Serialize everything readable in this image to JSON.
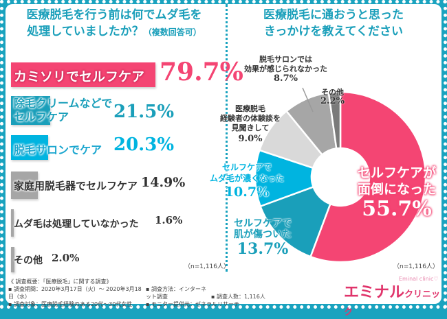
{
  "left": {
    "title_line1": "医療脱毛を行う前は何でムダ毛を",
    "title_line2": "処理していましたか？",
    "title_note": "（複数回答可）",
    "n_note": "（n=1,116人）"
  },
  "right": {
    "title_line1": "医療脱毛に通おうと思った",
    "title_line2": "きっかけを教えてください",
    "n_note": "（n=1,116人）"
  },
  "chart_data": [
    {
      "type": "bar",
      "orientation": "horizontal",
      "categories": [
        "カミソリでセルフケア",
        "除毛クリームなどでセルフケア",
        "脱毛サロンでケア",
        "家庭用脱毛器でセルフケア",
        "ムダ毛は処理していなかった",
        "その他"
      ],
      "values": [
        79.7,
        21.5,
        20.3,
        14.9,
        1.6,
        2.0
      ],
      "value_labels": [
        "79.7%",
        "21.5%",
        "20.3%",
        "14.9%",
        "1.6%",
        "2.0%"
      ],
      "colors": [
        "#f44573",
        "#1a9fba",
        "#00b4e0",
        "#a6a6a6",
        "#a6a6a6",
        "#a6a6a6"
      ],
      "unit": "%"
    },
    {
      "type": "pie",
      "donut": true,
      "categories": [
        "セルフケアが面倒になった",
        "セルフケアで肌が傷ついた",
        "セルフケアでムダ毛が濃くなった",
        "医療脱毛経験者の体験談を見聞きして",
        "脱毛サロンでは効果が感じられなかった",
        "その他"
      ],
      "values": [
        55.7,
        13.7,
        10.7,
        9.0,
        8.7,
        2.2
      ],
      "value_labels": [
        "55.7%",
        "13.7%",
        "10.7%",
        "9.0%",
        "8.7%",
        "2.2%"
      ],
      "colors": [
        "#f44573",
        "#1a9fba",
        "#00b4e0",
        "#d9d9d9",
        "#a6a6a6",
        "#7a7a7a"
      ]
    }
  ],
  "pie_labels": {
    "l0a": "セルフケアが",
    "l0b": "面倒になった",
    "l1a": "セルフケアで",
    "l1b": "肌が傷ついた",
    "l2a": "セルフケアで",
    "l2b": "ムダ毛が濃くなった",
    "l3a": "医療脱毛",
    "l3b": "経験者の体験談を",
    "l3c": "見聞きして",
    "l4a": "脱毛サロンでは",
    "l4b": "効果が感じられなかった",
    "l5a": "その他"
  },
  "bar_labels": {
    "b1a": "除毛クリームなどで",
    "b1b": "セルフケア"
  },
  "footer": {
    "heading": "《 調査概要：「医療脱毛」に関する調査》",
    "period": "▪ 調査期間：2020年3月17日（火）～ 2020年3月18日（水）",
    "method": "▪ 調査方法：インターネット調査",
    "count": "▪ 調査人数：1,116人",
    "target": "▪ 調査対象：医療脱毛経験のある20代～30代女性",
    "provider": "▪ モニター提供元：ゼネラルリサーチ"
  },
  "logo": {
    "main": "エミナル",
    "sub": "クリニック",
    "en": "Eminal clinic♡"
  }
}
